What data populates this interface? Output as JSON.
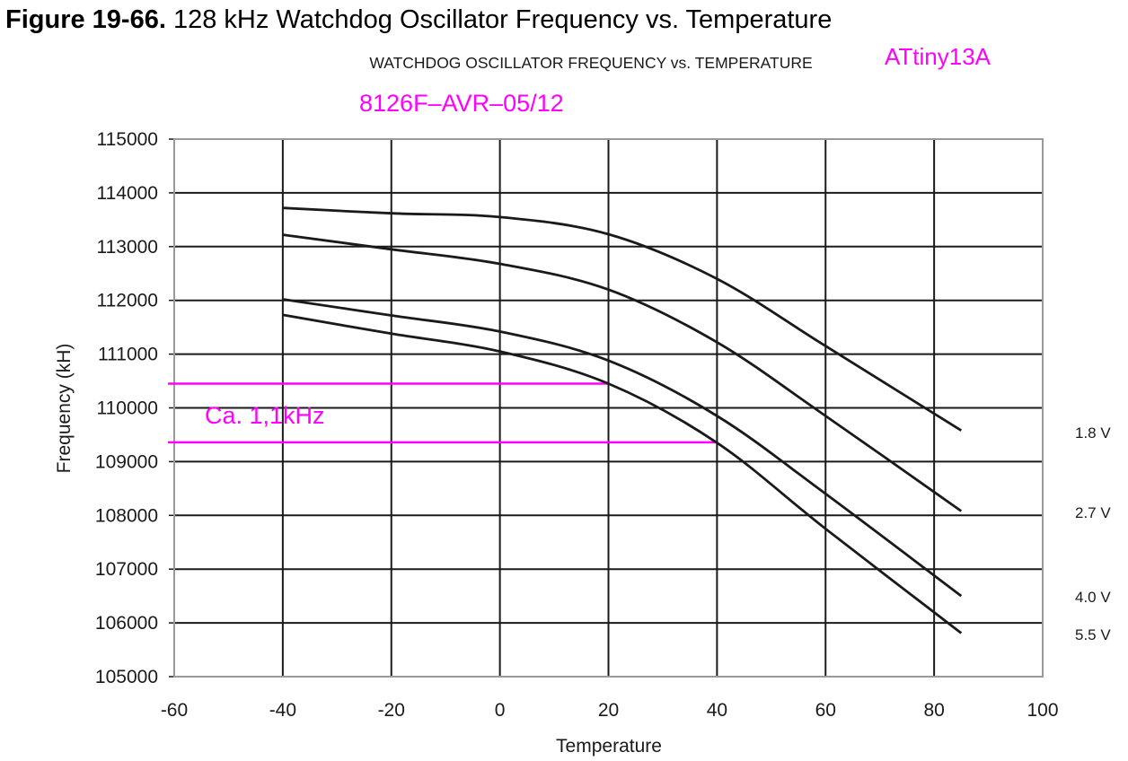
{
  "figure": {
    "number": "Figure 19-66.",
    "caption": "128 kHz Watchdog Oscillator Frequency vs. Temperature"
  },
  "chart_data": {
    "type": "line",
    "title": "WATCHDOG OSCILLATOR FREQUENCY vs. TEMPERATURE",
    "xlabel": "Temperature",
    "ylabel": "Frequency (kH)",
    "xlim": [
      -60,
      100
    ],
    "ylim": [
      105000,
      115000
    ],
    "x_ticks": [
      "-60",
      "-40",
      "-20",
      "0",
      "20",
      "40",
      "60",
      "80",
      "100"
    ],
    "y_ticks": [
      "105000",
      "106000",
      "107000",
      "108000",
      "109000",
      "110000",
      "111000",
      "112000",
      "113000",
      "114000",
      "115000"
    ],
    "grid": true,
    "series": [
      {
        "name": "1.8 V",
        "x": [
          -40,
          -20,
          0,
          20,
          40,
          60,
          85
        ],
        "y": [
          113720,
          113620,
          113550,
          113230,
          112400,
          111150,
          109580
        ]
      },
      {
        "name": "2.7 V",
        "x": [
          -40,
          -20,
          0,
          20,
          40,
          60,
          85
        ],
        "y": [
          113220,
          112950,
          112680,
          112200,
          111220,
          109850,
          108080
        ]
      },
      {
        "name": "4.0 V",
        "x": [
          -40,
          -20,
          0,
          20,
          40,
          60,
          85
        ],
        "y": [
          112020,
          111720,
          111420,
          110880,
          109850,
          108400,
          106500
        ]
      },
      {
        "name": "5.5 V",
        "x": [
          -40,
          -20,
          0,
          20,
          40,
          60,
          85
        ],
        "y": [
          111730,
          111380,
          111050,
          110450,
          109350,
          107750,
          105810
        ]
      }
    ],
    "legend_placement": "right",
    "annotations": [
      {
        "text": "ATtiny13A",
        "color": "#ff00ff"
      },
      {
        "text": "8126F–AVR–05/12",
        "color": "#ff00ff"
      },
      {
        "text": "Ca. 1,1kHz",
        "color": "#ff00ff"
      }
    ],
    "marker_lines": [
      {
        "y": 110450,
        "x_end": 20,
        "color": "#ff00ff"
      },
      {
        "y": 109360,
        "x_end": 40,
        "color": "#ff00ff"
      }
    ],
    "colors": {
      "series": "#1a1a1a",
      "grid": "#1a1a1a",
      "frame": "#9a9a9a",
      "annotation": "#ff00ff"
    }
  }
}
